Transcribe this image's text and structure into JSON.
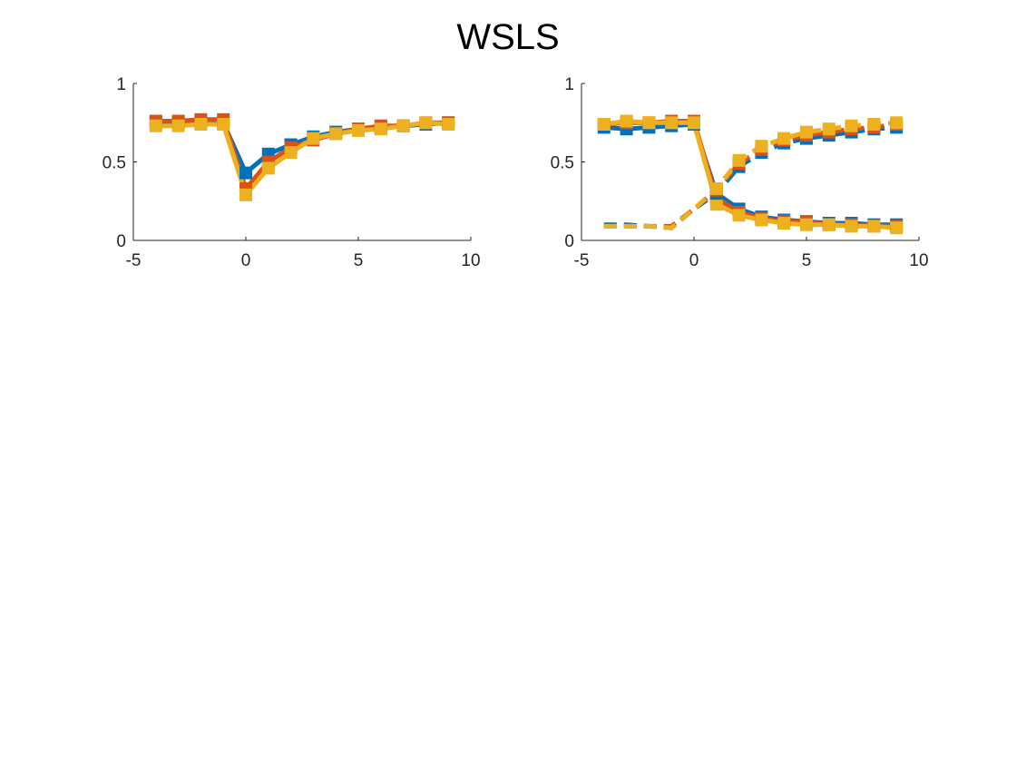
{
  "figure": {
    "title": "WSLS"
  },
  "chart_data": [
    {
      "type": "line",
      "title": "",
      "xlabel": "",
      "ylabel": "",
      "xlim": [
        -5,
        10
      ],
      "ylim": [
        0,
        1
      ],
      "xticks": [
        -5,
        0,
        5,
        10
      ],
      "yticks": [
        0,
        0.5,
        1
      ],
      "xtick_labels": [
        "-5",
        "0",
        "5",
        "10"
      ],
      "ytick_labels": [
        "0",
        "0.5",
        "1"
      ],
      "grid": false,
      "x": [
        -4,
        -3,
        -2,
        -1,
        0,
        1,
        2,
        3,
        4,
        5,
        6,
        7,
        8,
        9
      ],
      "series": [
        {
          "color": "#0072BD",
          "style": "solid",
          "values": [
            0.75,
            0.75,
            0.75,
            0.75,
            0.43,
            0.55,
            0.61,
            0.66,
            0.69,
            0.71,
            0.72,
            0.73,
            0.74,
            0.75
          ]
        },
        {
          "color": "#D95319",
          "style": "solid",
          "values": [
            0.76,
            0.76,
            0.77,
            0.77,
            0.33,
            0.5,
            0.59,
            0.64,
            0.68,
            0.71,
            0.73,
            0.73,
            0.75,
            0.75
          ]
        },
        {
          "color": "#EDB120",
          "style": "solid",
          "values": [
            0.73,
            0.73,
            0.74,
            0.74,
            0.29,
            0.46,
            0.56,
            0.65,
            0.68,
            0.7,
            0.71,
            0.73,
            0.75,
            0.74
          ]
        }
      ]
    },
    {
      "type": "line",
      "title": "",
      "xlabel": "",
      "ylabel": "",
      "xlim": [
        -5,
        10
      ],
      "ylim": [
        0,
        1
      ],
      "xticks": [
        -5,
        0,
        5,
        10
      ],
      "yticks": [
        0,
        0.5,
        1
      ],
      "xtick_labels": [
        "-5",
        "0",
        "5",
        "10"
      ],
      "ytick_labels": [
        "0",
        "0.5",
        "1"
      ],
      "grid": false,
      "x": [
        -4,
        -3,
        -2,
        -1,
        0,
        1,
        2,
        3,
        4,
        5,
        6,
        7,
        8,
        9
      ],
      "series": [
        {
          "color": "#0072BD",
          "style": "solid",
          "markers_from": 0,
          "values": [
            0.72,
            0.71,
            0.72,
            0.73,
            0.74,
            0.3,
            0.2,
            0.15,
            0.13,
            0.12,
            0.11,
            0.11,
            0.1,
            0.1
          ]
        },
        {
          "color": "#D95319",
          "style": "solid",
          "markers_from": 0,
          "values": [
            0.74,
            0.75,
            0.75,
            0.76,
            0.76,
            0.27,
            0.18,
            0.14,
            0.12,
            0.12,
            0.1,
            0.1,
            0.09,
            0.09
          ]
        },
        {
          "color": "#EDB120",
          "style": "solid",
          "markers_from": 0,
          "values": [
            0.74,
            0.76,
            0.75,
            0.75,
            0.75,
            0.23,
            0.16,
            0.13,
            0.11,
            0.1,
            0.1,
            0.09,
            0.09,
            0.08
          ]
        },
        {
          "color": "#0072BD",
          "style": "dashed",
          "markers_from": 5,
          "values": [
            0.1,
            0.1,
            0.09,
            0.08,
            0.2,
            0.3,
            0.47,
            0.56,
            0.62,
            0.65,
            0.67,
            0.69,
            0.71,
            0.72
          ]
        },
        {
          "color": "#D95319",
          "style": "dashed",
          "markers_from": 5,
          "values": [
            0.09,
            0.09,
            0.09,
            0.09,
            0.2,
            0.32,
            0.49,
            0.58,
            0.64,
            0.67,
            0.69,
            0.71,
            0.72,
            0.74
          ]
        },
        {
          "color": "#EDB120",
          "style": "dashed",
          "markers_from": 5,
          "values": [
            0.09,
            0.09,
            0.09,
            0.08,
            0.2,
            0.33,
            0.51,
            0.6,
            0.65,
            0.69,
            0.71,
            0.73,
            0.74,
            0.75
          ]
        }
      ]
    }
  ]
}
